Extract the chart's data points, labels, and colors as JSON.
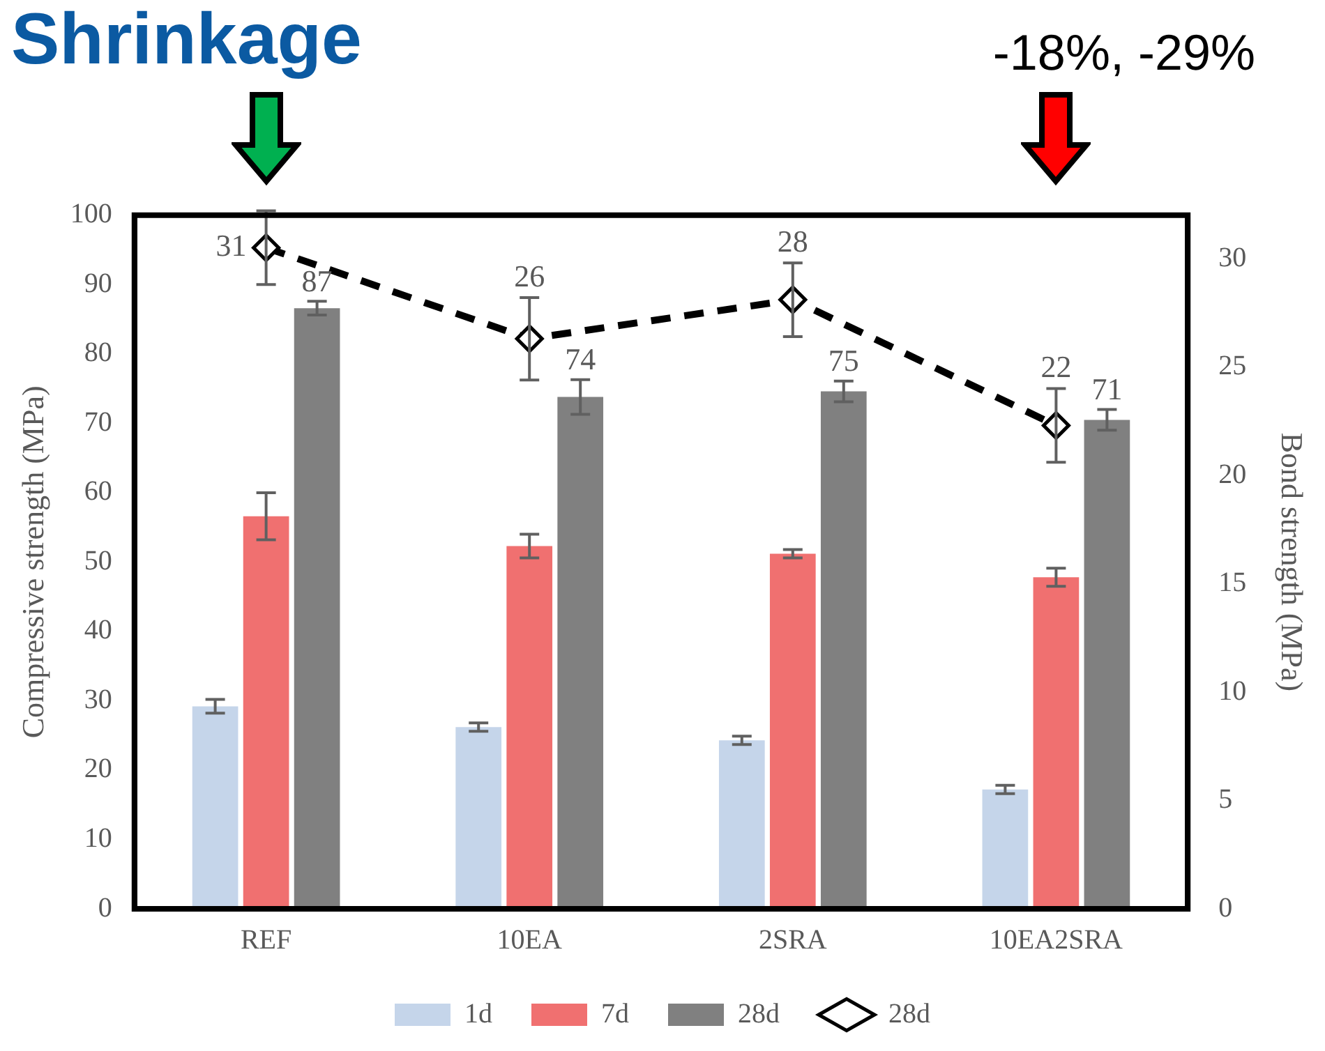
{
  "chart_data": {
    "type": "bar",
    "title": "Shrinkage",
    "annotations": [
      "-18%, -29%"
    ],
    "categories": [
      "REF",
      "10EA",
      "2SRA",
      "10EA2SRA"
    ],
    "ylabel": "Compressive strength (MPa)",
    "y2label": "Bond strength (MPa)",
    "ylim": [
      0,
      100
    ],
    "yticks": [
      0,
      10,
      20,
      30,
      40,
      50,
      60,
      70,
      80,
      90,
      100
    ],
    "y2lim": [
      0,
      32
    ],
    "y2ticks": [
      0,
      5,
      10,
      15,
      20,
      25,
      30
    ],
    "grid": false,
    "legend": "bottom",
    "series": [
      {
        "name": "1d",
        "color": "#c5d5ea",
        "values": [
          29.2,
          26.2,
          24.3,
          17.2
        ],
        "errors": [
          1,
          0.6,
          0.6,
          0.6
        ]
      },
      {
        "name": "7d",
        "color": "#f07070",
        "values": [
          56.6,
          52.3,
          51.2,
          47.8
        ],
        "errors": [
          3.4,
          1.7,
          0.6,
          1.3
        ]
      },
      {
        "name": "28d",
        "color": "#808080",
        "values": [
          86.6,
          73.8,
          74.6,
          70.5
        ],
        "errors": [
          1,
          2.5,
          1.5,
          1.5
        ],
        "value_labels": [
          "87",
          "74",
          "75",
          "71"
        ]
      },
      {
        "name": "28d",
        "type": "line",
        "axis": "y2",
        "color": "#000000",
        "marker": "diamond",
        "line_style": "dashed",
        "values": [
          30.5,
          26.3,
          28.1,
          22.3
        ],
        "errors": [
          1.7,
          1.9,
          1.7,
          1.7
        ],
        "value_labels": [
          "31",
          "26",
          "28",
          "22"
        ]
      }
    ]
  }
}
